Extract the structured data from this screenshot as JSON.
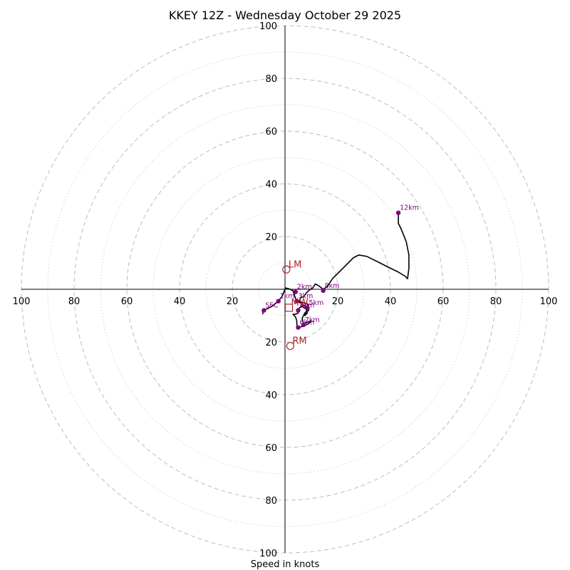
{
  "chart_data": {
    "type": "hodograph",
    "title": "KKEY 12Z - Wednesday October 29 2025",
    "xlabel": "Speed in knots",
    "units": "knots",
    "range": [
      -100,
      100
    ],
    "ring_labels": [
      "100",
      "80",
      "60",
      "40",
      "20",
      "20",
      "40",
      "60",
      "80",
      "100"
    ],
    "rings_dashed": [
      20,
      40,
      60,
      80,
      100
    ],
    "rings_dotted": [
      10,
      30,
      50,
      70,
      90
    ],
    "trace": [
      [
        -8.5,
        -9.5
      ],
      [
        -8.2,
        -8.0
      ],
      [
        -7.0,
        -7.5
      ],
      [
        -5.0,
        -6.5
      ],
      [
        -2.5,
        -4.5
      ],
      [
        -1.0,
        -2.5
      ],
      [
        0.2,
        0.5
      ],
      [
        1.5,
        0.2
      ],
      [
        3.0,
        -0.5
      ],
      [
        3.5,
        -2.0
      ],
      [
        4.0,
        -3.5
      ],
      [
        4.5,
        -4.5
      ],
      [
        5.5,
        -5.0
      ],
      [
        7.0,
        -6.0
      ],
      [
        8.5,
        -7.0
      ],
      [
        8.0,
        -8.5
      ],
      [
        7.5,
        -10.0
      ],
      [
        8.5,
        -9.0
      ],
      [
        8.0,
        -7.5
      ],
      [
        6.5,
        -6.5
      ],
      [
        5.5,
        -7.0
      ],
      [
        5.0,
        -8.0
      ],
      [
        5.0,
        -9.0
      ],
      [
        4.0,
        -9.5
      ],
      [
        3.0,
        -9.5
      ],
      [
        4.0,
        -10.5
      ],
      [
        4.5,
        -12.0
      ],
      [
        4.5,
        -13.5
      ],
      [
        5.0,
        -14.5
      ],
      [
        7.0,
        -14.0
      ],
      [
        9.0,
        -13.0
      ],
      [
        10.0,
        -12.0
      ],
      [
        8.5,
        -12.5
      ],
      [
        7.0,
        -13.0
      ],
      [
        6.5,
        -11.0
      ],
      [
        7.5,
        -9.0
      ],
      [
        9.0,
        -8.0
      ],
      [
        9.0,
        -6.5
      ],
      [
        8.5,
        -5.5
      ],
      [
        6.5,
        -5.0
      ],
      [
        5.5,
        -4.5
      ],
      [
        6.0,
        -3.0
      ],
      [
        7.0,
        -3.0
      ],
      [
        8.0,
        -1.5
      ],
      [
        9.0,
        -0.5
      ],
      [
        10.5,
        0.5
      ],
      [
        11.5,
        2.0
      ],
      [
        12.5,
        1.5
      ],
      [
        13.5,
        0.8
      ],
      [
        14.5,
        0.0
      ],
      [
        16.0,
        1.0
      ],
      [
        17.0,
        2.5
      ],
      [
        18.0,
        4.0
      ],
      [
        20.0,
        6.0
      ],
      [
        22.0,
        8.0
      ],
      [
        24.0,
        10.0
      ],
      [
        26.0,
        12.0
      ],
      [
        28.0,
        13.0
      ],
      [
        31.0,
        12.5
      ],
      [
        35.0,
        10.5
      ],
      [
        39.0,
        8.5
      ],
      [
        43.0,
        6.5
      ],
      [
        45.5,
        5.0
      ],
      [
        46.5,
        4.0
      ],
      [
        47.0,
        8.0
      ],
      [
        47.0,
        13.0
      ],
      [
        46.0,
        18.0
      ],
      [
        45.0,
        20.5
      ],
      [
        44.0,
        23.0
      ],
      [
        43.0,
        25.0
      ],
      [
        43.0,
        29.0
      ]
    ],
    "height_markers": [
      {
        "label": "SFC",
        "u": -8.0,
        "v": -8.0
      },
      {
        "label": "1km",
        "u": -2.5,
        "v": -4.5
      },
      {
        "label": "2km",
        "u": 4.0,
        "v": -1.0
      },
      {
        "label": "3km",
        "u": 4.5,
        "v": -4.5
      },
      {
        "label": "4km",
        "u": 5.0,
        "v": -8.0
      },
      {
        "label": "5km",
        "u": 8.5,
        "v": -7.0
      },
      {
        "label": "6km",
        "u": 5.0,
        "v": -14.5
      },
      {
        "label": "7km",
        "u": 7.0,
        "v": -13.5
      },
      {
        "label": "8km",
        "u": 14.5,
        "v": -0.5
      },
      {
        "label": "12km",
        "u": 43.0,
        "v": 29.0
      }
    ],
    "motion_markers": [
      {
        "label": "LM",
        "u": 0.5,
        "v": 7.5,
        "shape": "circle"
      },
      {
        "label": "RM",
        "u": 2.0,
        "v": -21.5,
        "shape": "circle"
      },
      {
        "label": "MW",
        "u": 1.5,
        "v": -7.0,
        "shape": "square"
      }
    ],
    "colors": {
      "trace": "#000000",
      "height": "#800080",
      "motion": "#b22222",
      "grid": "#bdbdbd"
    }
  }
}
